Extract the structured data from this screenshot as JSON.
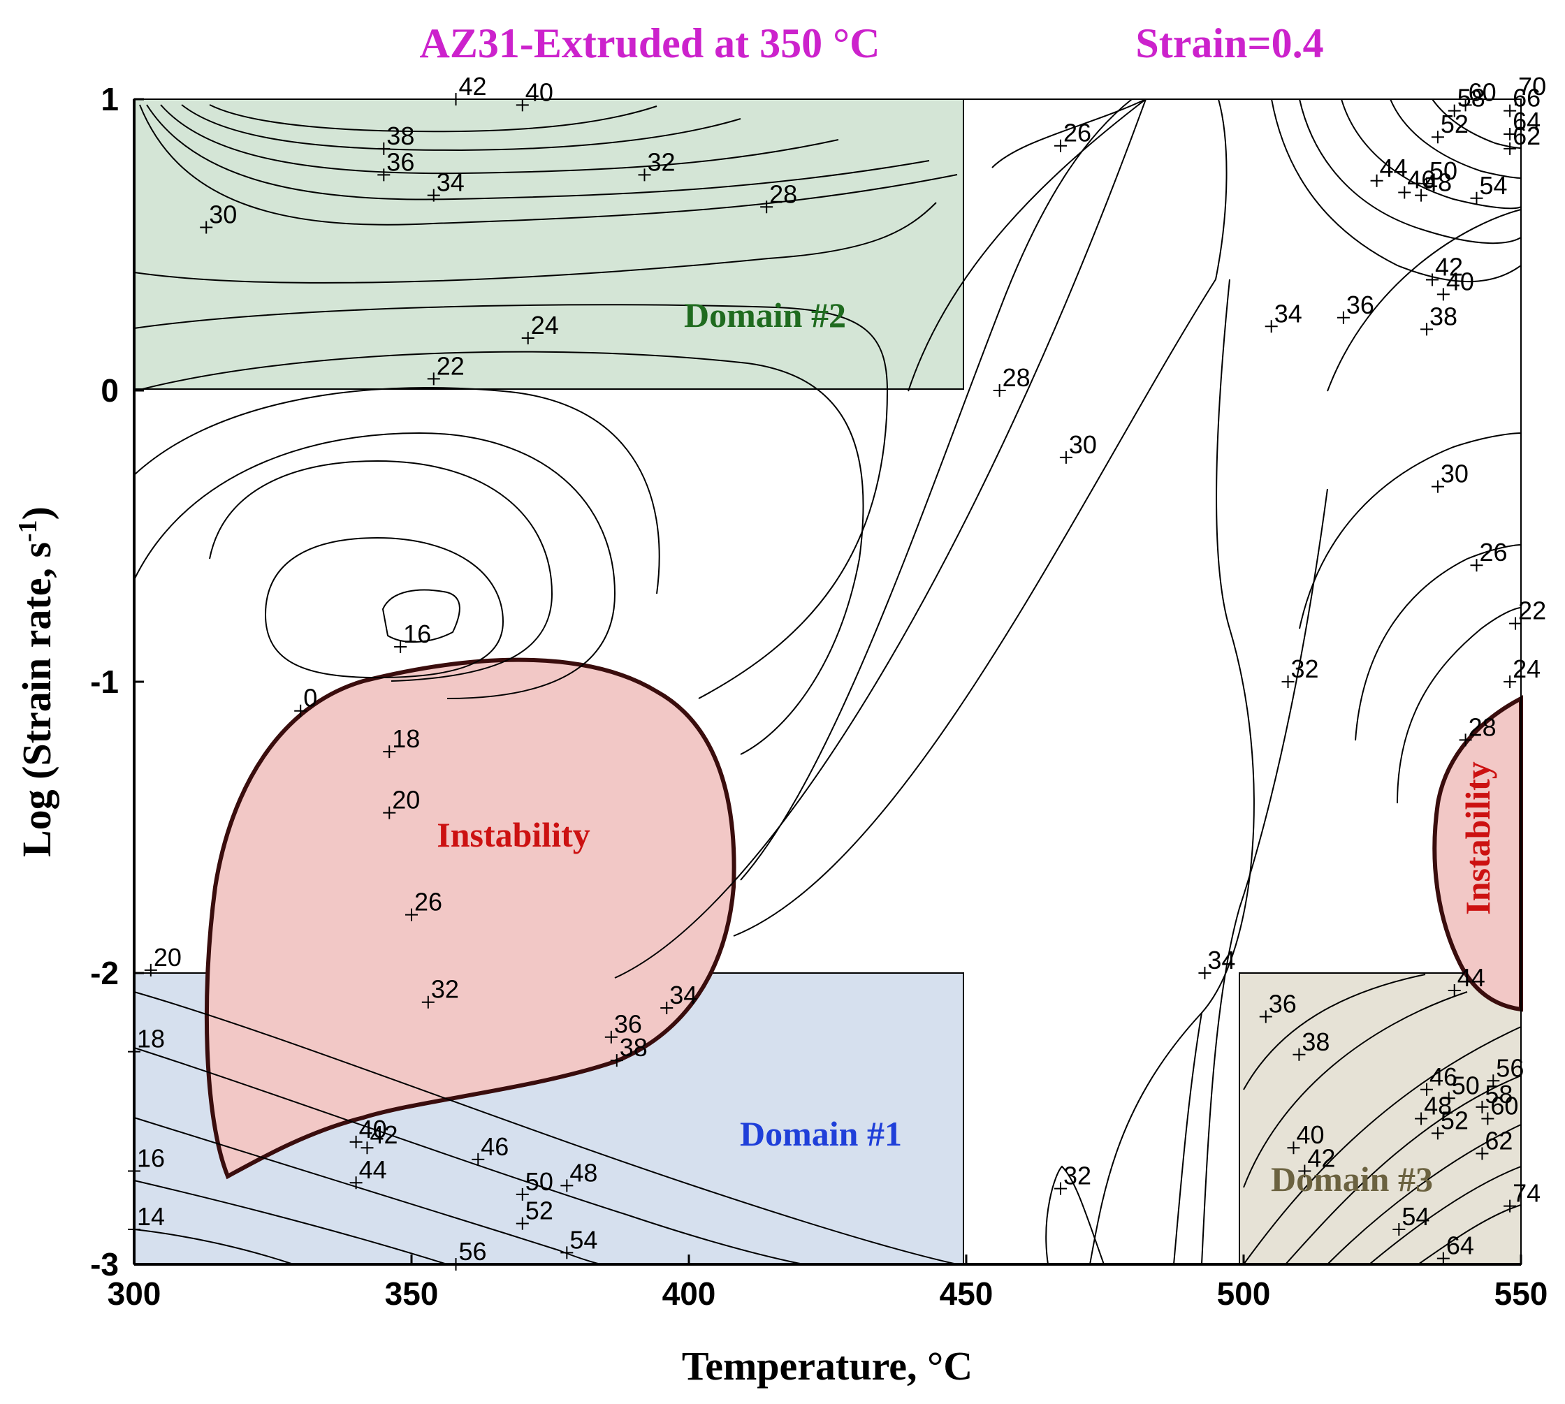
{
  "chart_data": {
    "type": "contour",
    "title": "AZ31-Extruded at 350 °C",
    "subtitle": "Strain=0.4",
    "title_color": "#cc22cc",
    "xlabel": "Temperature, °C",
    "ylabel_main": "Log (Strain rate, s",
    "ylabel_sup": "-1",
    "ylabel_close": ")",
    "xlim": [
      300,
      550
    ],
    "ylim": [
      -3,
      1
    ],
    "xticks": [
      "300",
      "350",
      "400",
      "450",
      "500",
      "550"
    ],
    "yticks": [
      "1",
      "0",
      "-1",
      "-2",
      "-3"
    ],
    "grid": false,
    "regions": [
      {
        "name": "domain1",
        "label": "Domain #1",
        "color": "#1f3fd9",
        "fill": "#d6e0ee",
        "x": [
          300,
          450
        ],
        "y": [
          -3,
          -2
        ]
      },
      {
        "name": "domain2",
        "label": "Domain #2",
        "color": "#1f6b1f",
        "fill": "#d4e5d6",
        "x": [
          300,
          450
        ],
        "y": [
          0,
          1
        ]
      },
      {
        "name": "domain3",
        "label": "Domain #3",
        "color": "#6b6240",
        "fill": "#e6e2d6",
        "x": [
          500,
          550
        ],
        "y": [
          -3,
          -2
        ]
      }
    ],
    "instability": {
      "label": "Instability",
      "color": "#cc1111",
      "fill": "#f2c8c6"
    },
    "contour_labels": [
      {
        "v": "42",
        "x": 358,
        "y": 1.0
      },
      {
        "v": "40",
        "x": 370,
        "y": 0.98
      },
      {
        "v": "38",
        "x": 345,
        "y": 0.83
      },
      {
        "v": "36",
        "x": 345,
        "y": 0.74
      },
      {
        "v": "34",
        "x": 354,
        "y": 0.67
      },
      {
        "v": "32",
        "x": 392,
        "y": 0.74
      },
      {
        "v": "30",
        "x": 313,
        "y": 0.56
      },
      {
        "v": "28",
        "x": 414,
        "y": 0.63
      },
      {
        "v": "24",
        "x": 371,
        "y": 0.18
      },
      {
        "v": "22",
        "x": 354,
        "y": 0.04
      },
      {
        "v": "26",
        "x": 467,
        "y": 0.84
      },
      {
        "v": "28",
        "x": 456,
        "y": 0.0
      },
      {
        "v": "30",
        "x": 468,
        "y": -0.23
      },
      {
        "v": "16",
        "x": 348,
        "y": -0.88
      },
      {
        "v": "0",
        "x": 330,
        "y": -1.1
      },
      {
        "v": "18",
        "x": 346,
        "y": -1.24
      },
      {
        "v": "20",
        "x": 346,
        "y": -1.45
      },
      {
        "v": "26",
        "x": 350,
        "y": -1.8
      },
      {
        "v": "32",
        "x": 353,
        "y": -2.1
      },
      {
        "v": "34",
        "x": 396,
        "y": -2.12
      },
      {
        "v": "36",
        "x": 386,
        "y": -2.22
      },
      {
        "v": "38",
        "x": 387,
        "y": -2.3
      },
      {
        "v": "20",
        "x": 303,
        "y": -1.99
      },
      {
        "v": "18",
        "x": 300,
        "y": -2.27
      },
      {
        "v": "16",
        "x": 300,
        "y": -2.68
      },
      {
        "v": "14",
        "x": 300,
        "y": -2.88
      },
      {
        "v": "40",
        "x": 340,
        "y": -2.58
      },
      {
        "v": "42",
        "x": 342,
        "y": -2.6
      },
      {
        "v": "44",
        "x": 340,
        "y": -2.72
      },
      {
        "v": "46",
        "x": 362,
        "y": -2.64
      },
      {
        "v": "48",
        "x": 378,
        "y": -2.73
      },
      {
        "v": "50",
        "x": 370,
        "y": -2.76
      },
      {
        "v": "52",
        "x": 370,
        "y": -2.86
      },
      {
        "v": "54",
        "x": 378,
        "y": -2.96
      },
      {
        "v": "56",
        "x": 358,
        "y": -3.0
      },
      {
        "v": "32",
        "x": 467,
        "y": -2.74
      },
      {
        "v": "34",
        "x": 493,
        "y": -2.0
      },
      {
        "v": "32",
        "x": 508,
        "y": -1.0
      },
      {
        "v": "36",
        "x": 504,
        "y": -2.15
      },
      {
        "v": "38",
        "x": 510,
        "y": -2.28
      },
      {
        "v": "40",
        "x": 509,
        "y": -2.6
      },
      {
        "v": "42",
        "x": 511,
        "y": -2.68
      },
      {
        "v": "46",
        "x": 533,
        "y": -2.4
      },
      {
        "v": "48",
        "x": 532,
        "y": -2.5
      },
      {
        "v": "50",
        "x": 537,
        "y": -2.43
      },
      {
        "v": "52",
        "x": 535,
        "y": -2.55
      },
      {
        "v": "54",
        "x": 528,
        "y": -2.88
      },
      {
        "v": "56",
        "x": 545,
        "y": -2.37
      },
      {
        "v": "58",
        "x": 543,
        "y": -2.46
      },
      {
        "v": "60",
        "x": 544,
        "y": -2.5
      },
      {
        "v": "62",
        "x": 543,
        "y": -2.62
      },
      {
        "v": "64",
        "x": 536,
        "y": -2.98
      },
      {
        "v": "74",
        "x": 548,
        "y": -2.8
      },
      {
        "v": "44",
        "x": 538,
        "y": -2.06
      },
      {
        "v": "44",
        "x": 524,
        "y": 0.72
      },
      {
        "v": "46",
        "x": 529,
        "y": 0.68
      },
      {
        "v": "50",
        "x": 533,
        "y": 0.71
      },
      {
        "v": "48",
        "x": 532,
        "y": 0.67
      },
      {
        "v": "54",
        "x": 542,
        "y": 0.66
      },
      {
        "v": "52",
        "x": 535,
        "y": 0.87
      },
      {
        "v": "42",
        "x": 534,
        "y": 0.38
      },
      {
        "v": "40",
        "x": 536,
        "y": 0.33
      },
      {
        "v": "38",
        "x": 533,
        "y": 0.21
      },
      {
        "v": "36",
        "x": 518,
        "y": 0.25
      },
      {
        "v": "34",
        "x": 505,
        "y": 0.22
      },
      {
        "v": "30",
        "x": 535,
        "y": -0.33
      },
      {
        "v": "26",
        "x": 542,
        "y": -0.6
      },
      {
        "v": "22",
        "x": 549,
        "y": -0.8
      },
      {
        "v": "24",
        "x": 548,
        "y": -1.0
      },
      {
        "v": "28",
        "x": 540,
        "y": -1.2
      },
      {
        "v": "70",
        "x": 549,
        "y": 1.0
      },
      {
        "v": "60",
        "x": 540,
        "y": 0.98
      },
      {
        "v": "58",
        "x": 538,
        "y": 0.96
      },
      {
        "v": "66",
        "x": 548,
        "y": 0.96
      },
      {
        "v": "64",
        "x": 548,
        "y": 0.88
      },
      {
        "v": "62",
        "x": 548,
        "y": 0.83
      }
    ]
  }
}
